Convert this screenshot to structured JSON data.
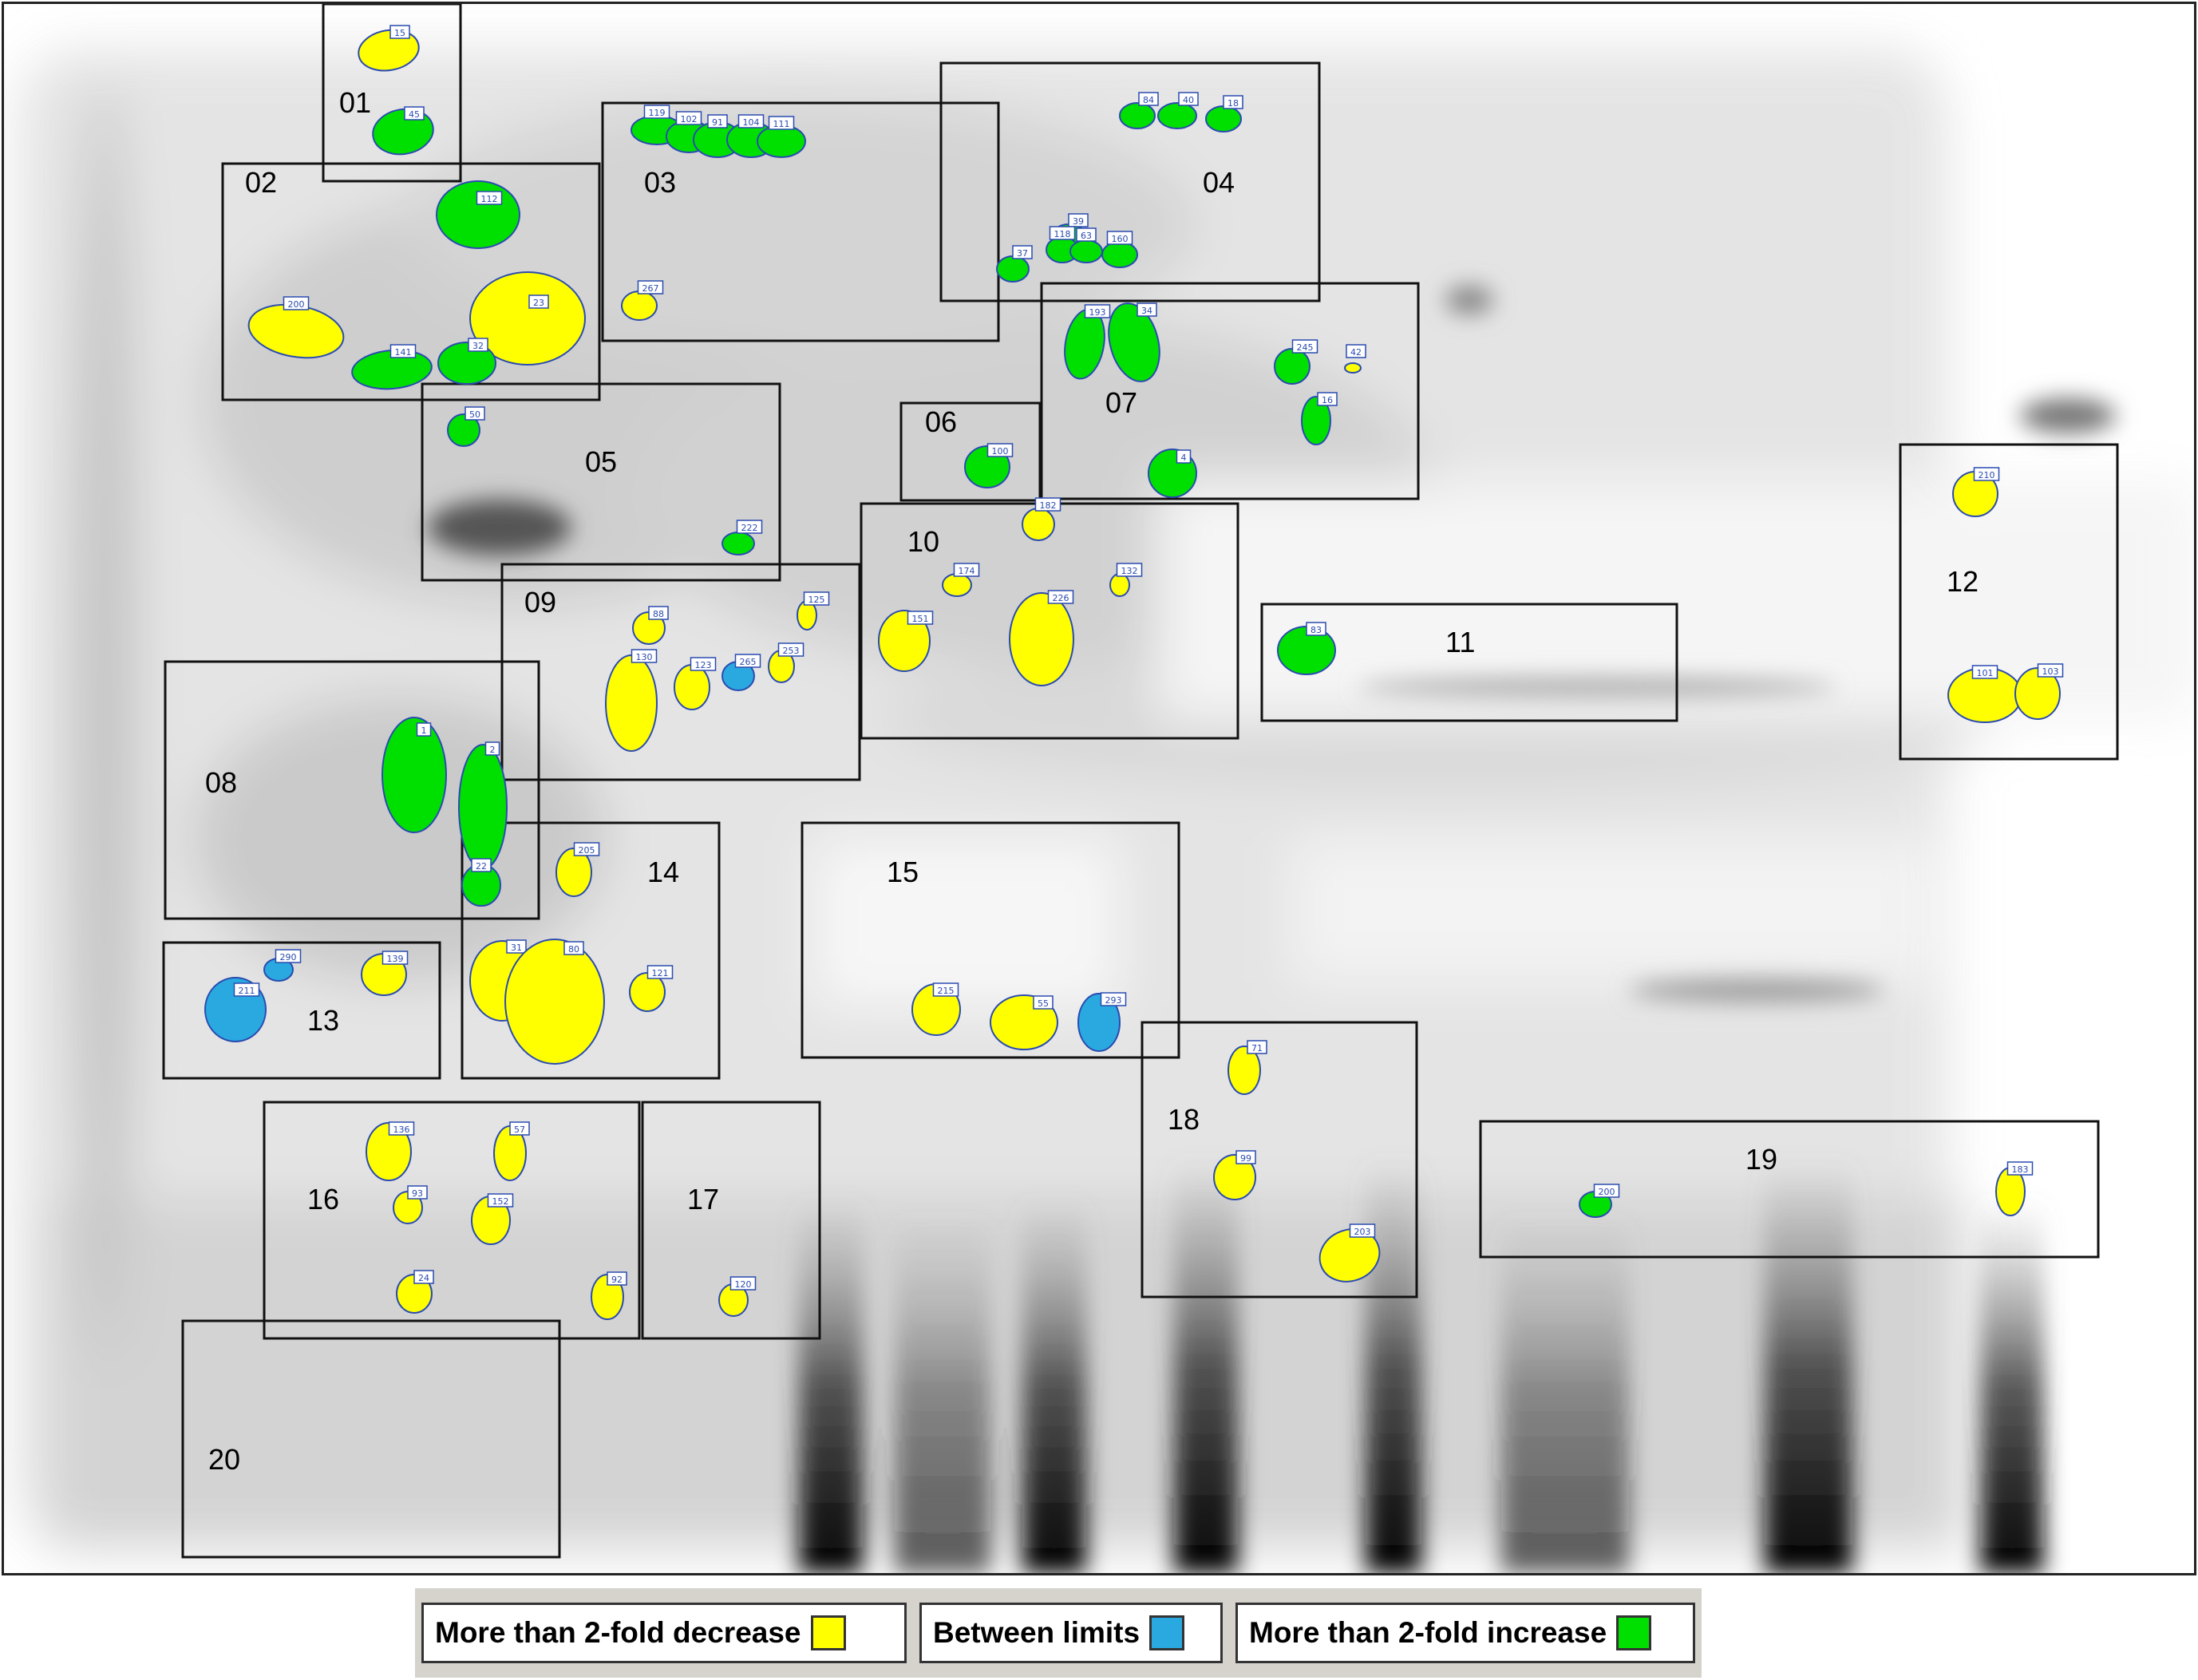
{
  "legend": [
    {
      "label": "More than 2-fold decrease",
      "color": "#ffff00"
    },
    {
      "label": "Between limits",
      "color": "#29a9e0"
    },
    {
      "label": "More than 2-fold increase",
      "color": "#00e000"
    }
  ],
  "regions": [
    {
      "label": "01"
    },
    {
      "label": "02"
    },
    {
      "label": "03"
    },
    {
      "label": "04"
    },
    {
      "label": "05"
    },
    {
      "label": "06"
    },
    {
      "label": "07"
    },
    {
      "label": "08"
    },
    {
      "label": "09"
    },
    {
      "label": "10"
    },
    {
      "label": "11"
    },
    {
      "label": "12"
    },
    {
      "label": "13"
    },
    {
      "label": "14"
    },
    {
      "label": "15"
    },
    {
      "label": "16"
    },
    {
      "label": "17"
    },
    {
      "label": "18"
    },
    {
      "label": "19"
    },
    {
      "label": "20"
    }
  ],
  "spots": [
    {
      "id": "15",
      "status": "decrease"
    },
    {
      "id": "45",
      "status": "increase"
    },
    {
      "id": "112",
      "status": "increase"
    },
    {
      "id": "23",
      "status": "decrease"
    },
    {
      "id": "200",
      "status": "decrease"
    },
    {
      "id": "141",
      "status": "increase"
    },
    {
      "id": "32",
      "status": "increase"
    },
    {
      "id": "119",
      "status": "increase"
    },
    {
      "id": "102",
      "status": "increase"
    },
    {
      "id": "91",
      "status": "increase"
    },
    {
      "id": "104",
      "status": "increase"
    },
    {
      "id": "111",
      "status": "increase"
    },
    {
      "id": "267",
      "status": "decrease"
    },
    {
      "id": "84",
      "status": "increase"
    },
    {
      "id": "40",
      "status": "increase"
    },
    {
      "id": "18",
      "status": "increase"
    },
    {
      "id": "39",
      "status": "increase"
    },
    {
      "id": "118",
      "status": "increase"
    },
    {
      "id": "63",
      "status": "increase"
    },
    {
      "id": "160",
      "status": "increase"
    },
    {
      "id": "37",
      "status": "increase"
    },
    {
      "id": "50",
      "status": "increase"
    },
    {
      "id": "222",
      "status": "increase"
    },
    {
      "id": "100",
      "status": "increase"
    },
    {
      "id": "193",
      "status": "increase"
    },
    {
      "id": "34",
      "status": "increase"
    },
    {
      "id": "245",
      "status": "increase"
    },
    {
      "id": "42",
      "status": "decrease"
    },
    {
      "id": "16",
      "status": "increase"
    },
    {
      "id": "4",
      "status": "increase"
    },
    {
      "id": "182",
      "status": "decrease"
    },
    {
      "id": "174",
      "status": "decrease"
    },
    {
      "id": "132",
      "status": "decrease"
    },
    {
      "id": "151",
      "status": "decrease"
    },
    {
      "id": "226",
      "status": "decrease"
    },
    {
      "id": "83",
      "status": "increase"
    },
    {
      "id": "210",
      "status": "decrease"
    },
    {
      "id": "101",
      "status": "decrease"
    },
    {
      "id": "103",
      "status": "decrease"
    },
    {
      "id": "88",
      "status": "decrease"
    },
    {
      "id": "130",
      "status": "decrease"
    },
    {
      "id": "123",
      "status": "decrease"
    },
    {
      "id": "265",
      "status": "between"
    },
    {
      "id": "253",
      "status": "decrease"
    },
    {
      "id": "125",
      "status": "decrease"
    },
    {
      "id": "1",
      "status": "increase"
    },
    {
      "id": "2",
      "status": "increase"
    },
    {
      "id": "22",
      "status": "increase"
    },
    {
      "id": "205",
      "status": "decrease"
    },
    {
      "id": "31",
      "status": "decrease"
    },
    {
      "id": "80",
      "status": "decrease"
    },
    {
      "id": "121",
      "status": "decrease"
    },
    {
      "id": "215",
      "status": "decrease"
    },
    {
      "id": "55",
      "status": "decrease"
    },
    {
      "id": "293",
      "status": "between"
    },
    {
      "id": "290",
      "status": "between"
    },
    {
      "id": "211",
      "status": "between"
    },
    {
      "id": "139",
      "status": "decrease"
    },
    {
      "id": "136",
      "status": "decrease"
    },
    {
      "id": "57",
      "status": "decrease"
    },
    {
      "id": "93",
      "status": "decrease"
    },
    {
      "id": "152",
      "status": "decrease"
    },
    {
      "id": "24",
      "status": "decrease"
    },
    {
      "id": "92",
      "status": "decrease"
    },
    {
      "id": "120",
      "status": "decrease"
    },
    {
      "id": "71",
      "status": "decrease"
    },
    {
      "id": "99",
      "status": "decrease"
    },
    {
      "id": "203",
      "status": "decrease"
    },
    {
      "id": "200",
      "status": "increase"
    },
    {
      "id": "183",
      "status": "decrease"
    }
  ]
}
